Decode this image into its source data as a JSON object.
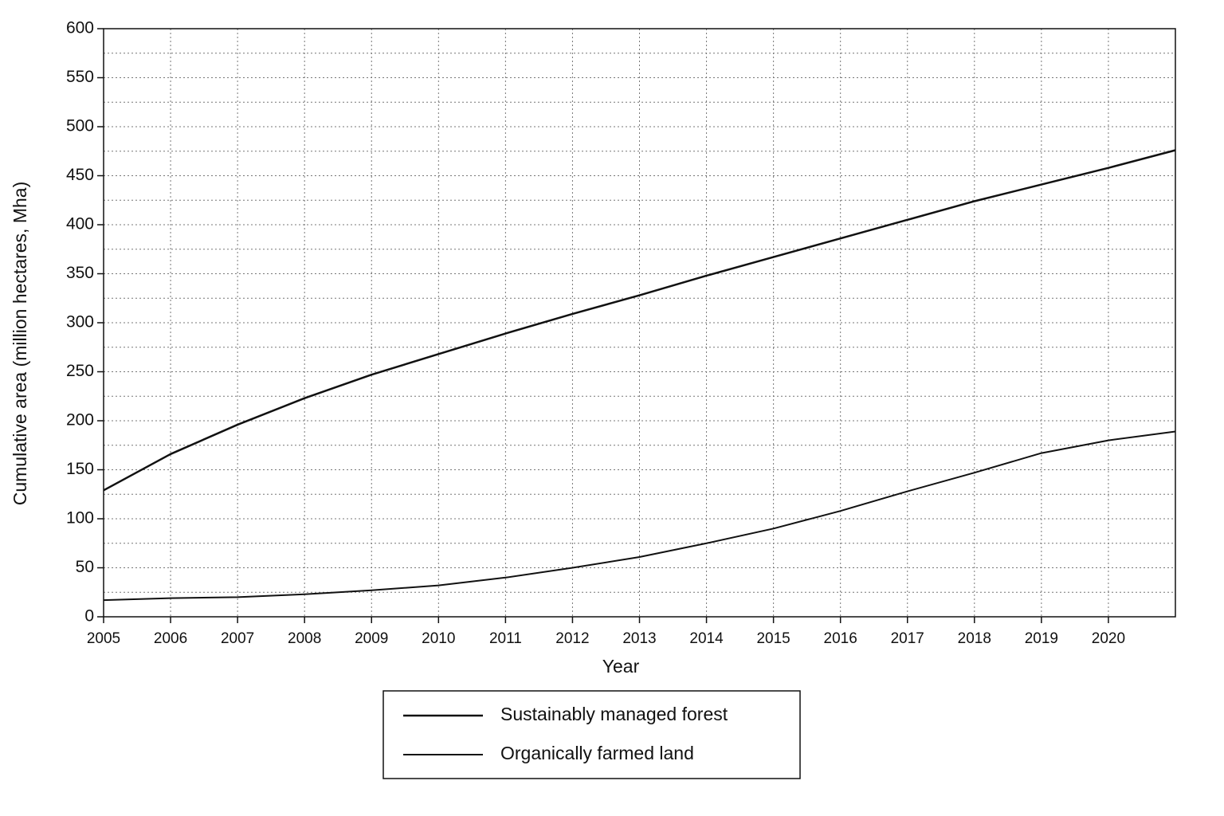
{
  "chart_data": {
    "type": "line",
    "x_label": "Year",
    "y_label": "Cumulative area (million hectares, Mha)",
    "x": [
      2005,
      2006,
      2007,
      2008,
      2009,
      2010,
      2011,
      2012,
      2013,
      2014,
      2015,
      2016,
      2017,
      2018,
      2019,
      2020,
      2021
    ],
    "series": [
      {
        "name": "Sustainably managed forest",
        "color": "#111111",
        "values": [
          129,
          166,
          196,
          223,
          247,
          268,
          289,
          309,
          328,
          348,
          367,
          386,
          405,
          424,
          441,
          458,
          476
        ]
      },
      {
        "name": "Organically farmed land",
        "color": "#111111",
        "values": [
          17,
          19,
          20,
          23,
          27,
          32,
          40,
          50,
          61,
          75,
          90,
          108,
          128,
          147,
          167,
          180,
          189
        ]
      }
    ],
    "xlim": [
      2005,
      2021
    ],
    "xticks": [
      2005,
      2006,
      2007,
      2008,
      2009,
      2010,
      2011,
      2012,
      2013,
      2014,
      2015,
      2016,
      2017,
      2018,
      2019,
      2020
    ],
    "ylim": [
      0,
      600
    ],
    "yticks": [
      0,
      50,
      100,
      150,
      200,
      250,
      300,
      350,
      400,
      450,
      500,
      550,
      600
    ],
    "grid": true,
    "legend": "bottom"
  }
}
